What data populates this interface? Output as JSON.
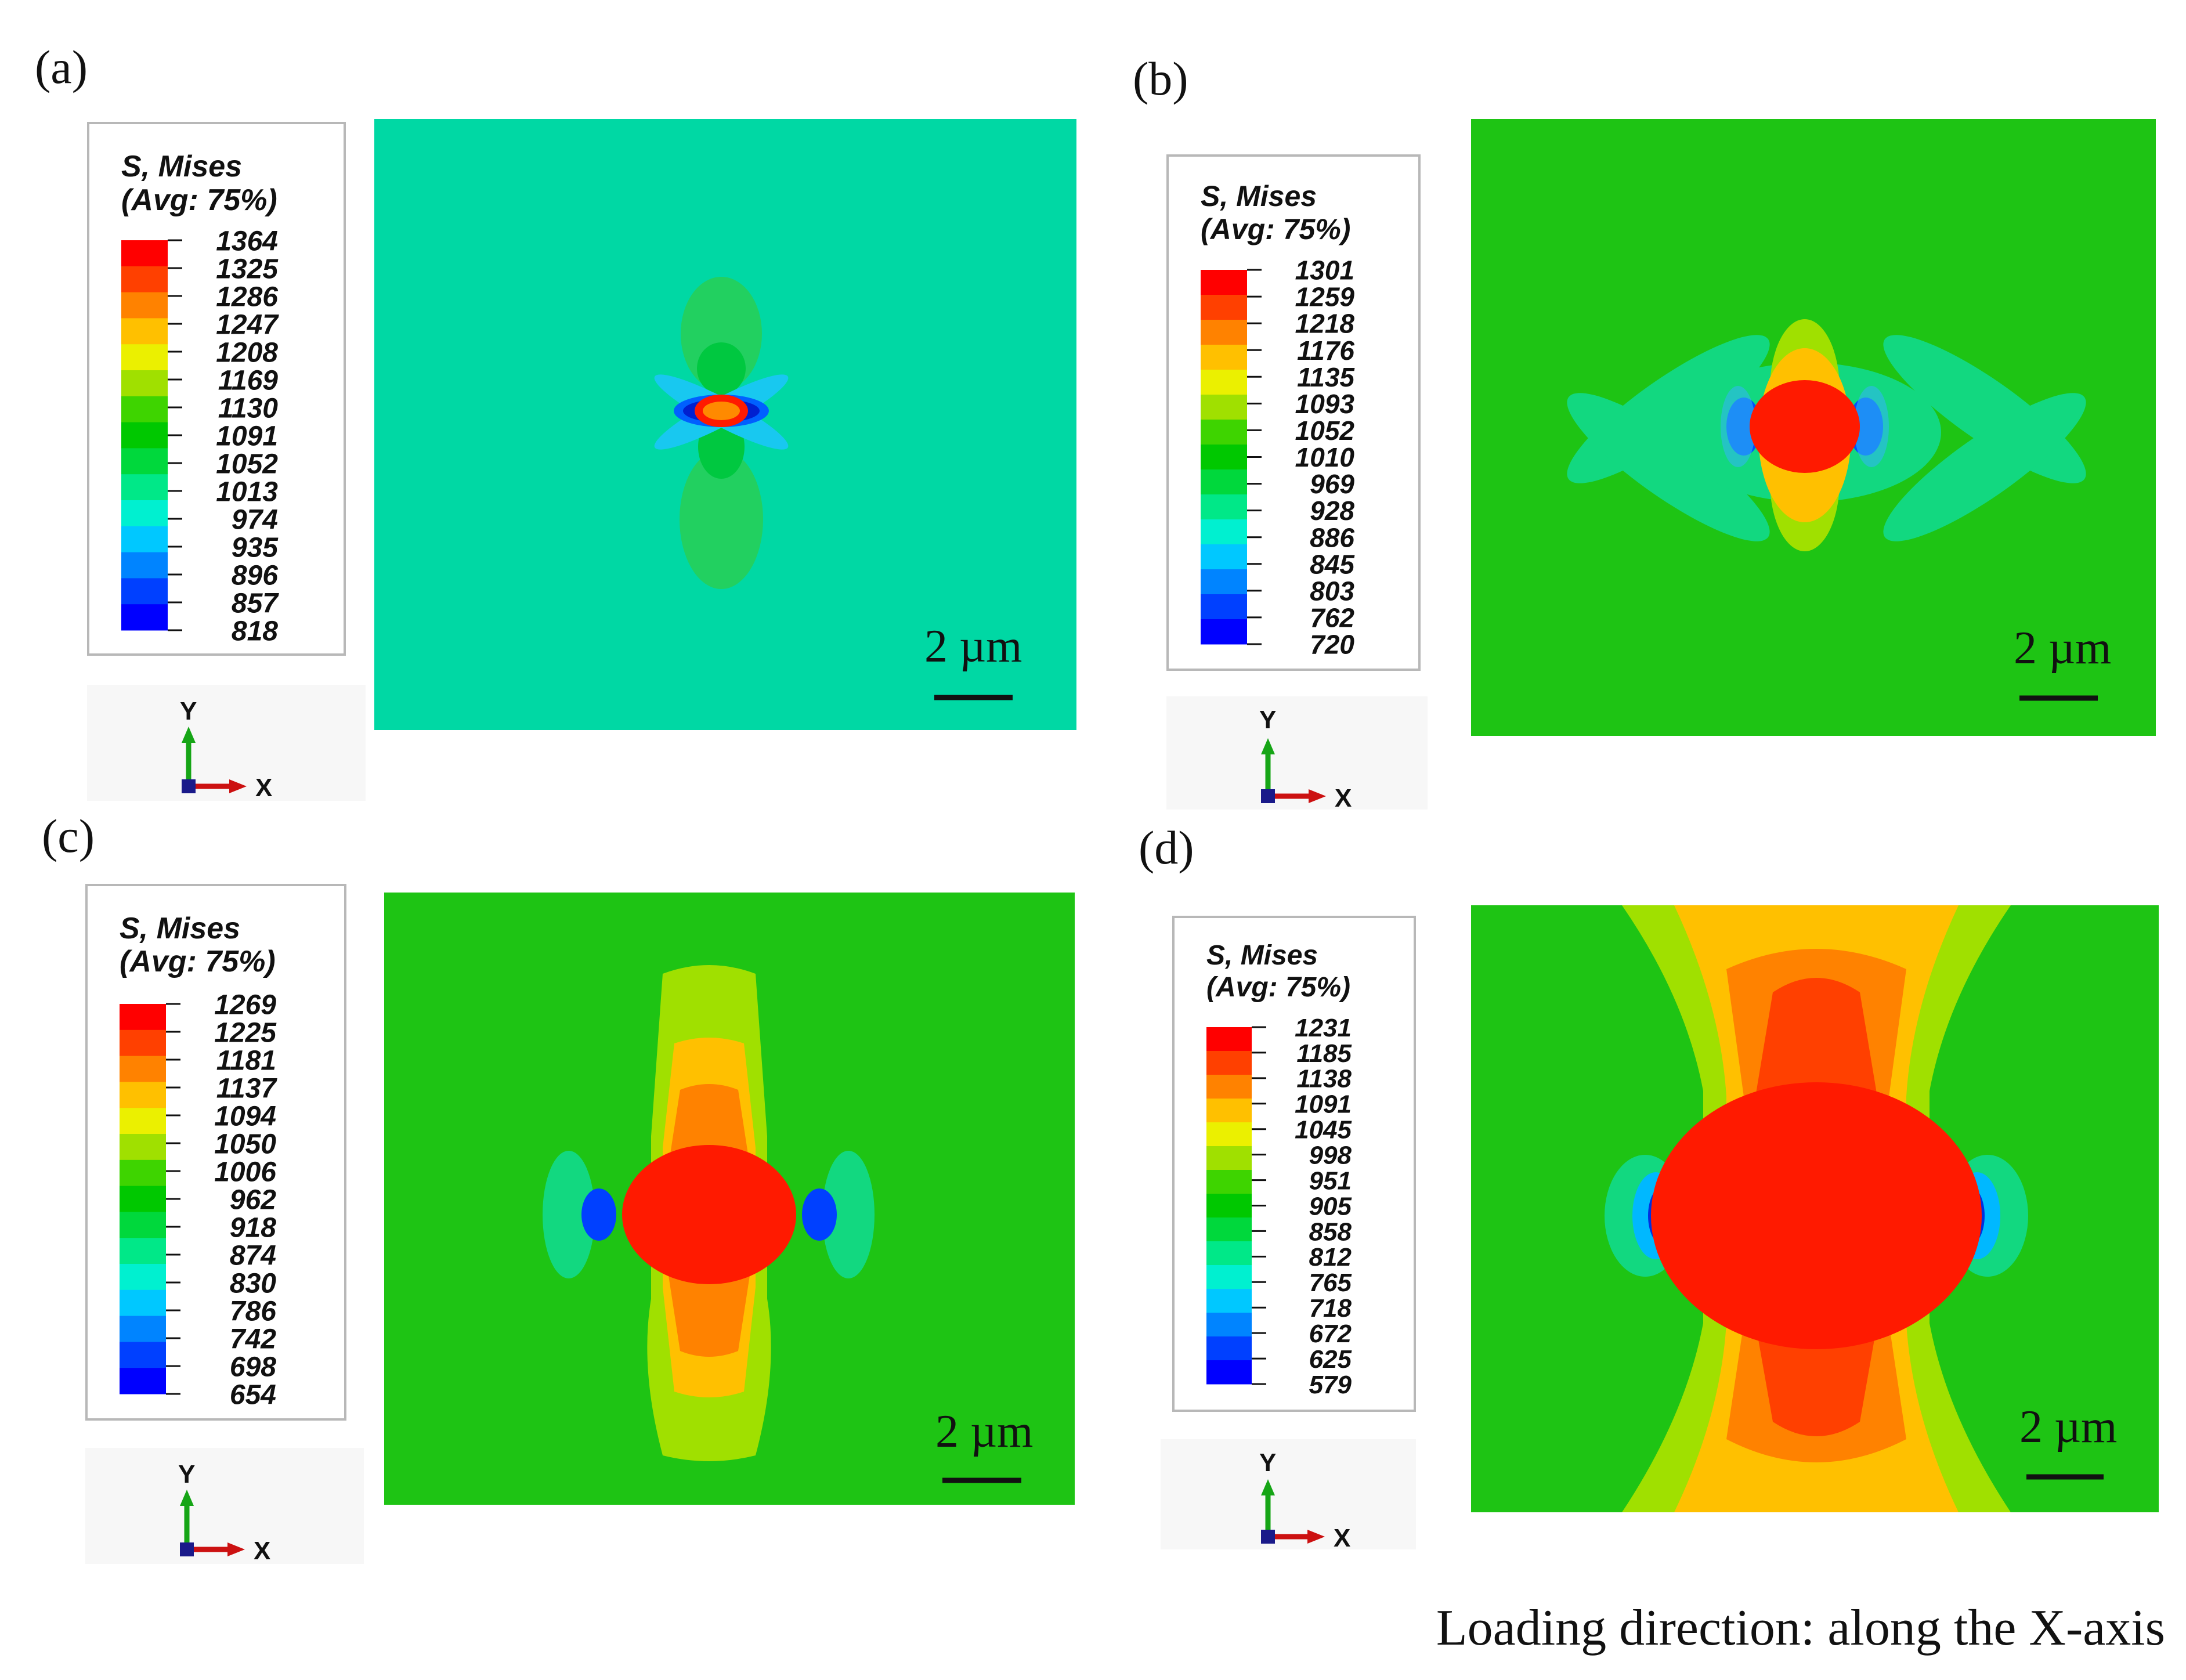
{
  "figure": {
    "loading_caption": "Loading direction: along the X-axis",
    "colors": {
      "bands": [
        "#ff0000",
        "#ff4000",
        "#ff8200",
        "#ffc000",
        "#ebf000",
        "#a0e000",
        "#3ed400",
        "#00c800",
        "#00d83c",
        "#00e888",
        "#00f0d0",
        "#00c8ff",
        "#0084ff",
        "#0040ff",
        "#0000ff"
      ],
      "panel_a_background": "#00d8a4",
      "panel_bcd_background": "#1ec414"
    }
  },
  "panels": [
    {
      "label": "(a)",
      "legend": {
        "title_line1": "S, Mises",
        "title_line2": "(Avg: 75%)",
        "ticks": [
          "1364",
          "1325",
          "1286",
          "1247",
          "1208",
          "1169",
          "1130",
          "1091",
          "1052",
          "1013",
          "974",
          "935",
          "896",
          "857",
          "818"
        ]
      },
      "triad": {
        "y": "Y",
        "x": "X"
      },
      "scale_bar": "2 µm"
    },
    {
      "label": "(b)",
      "legend": {
        "title_line1": "S, Mises",
        "title_line2": "(Avg: 75%)",
        "ticks": [
          "1301",
          "1259",
          "1218",
          "1176",
          "1135",
          "1093",
          "1052",
          "1010",
          "969",
          "928",
          "886",
          "845",
          "803",
          "762",
          "720"
        ]
      },
      "triad": {
        "y": "Y",
        "x": "X"
      },
      "scale_bar": "2 µm"
    },
    {
      "label": "(c)",
      "legend": {
        "title_line1": "S, Mises",
        "title_line2": "(Avg: 75%)",
        "ticks": [
          "1269",
          "1225",
          "1181",
          "1137",
          "1094",
          "1050",
          "1006",
          "962",
          "918",
          "874",
          "830",
          "786",
          "742",
          "698",
          "654"
        ]
      },
      "triad": {
        "y": "Y",
        "x": "X"
      },
      "scale_bar": "2 µm"
    },
    {
      "label": "(d)",
      "legend": {
        "title_line1": "S, Mises",
        "title_line2": "(Avg: 75%)",
        "ticks": [
          "1231",
          "1185",
          "1138",
          "1091",
          "1045",
          "998",
          "951",
          "905",
          "858",
          "812",
          "765",
          "718",
          "672",
          "625",
          "579"
        ]
      },
      "triad": {
        "y": "Y",
        "x": "X"
      },
      "scale_bar": "2 µm"
    }
  ]
}
